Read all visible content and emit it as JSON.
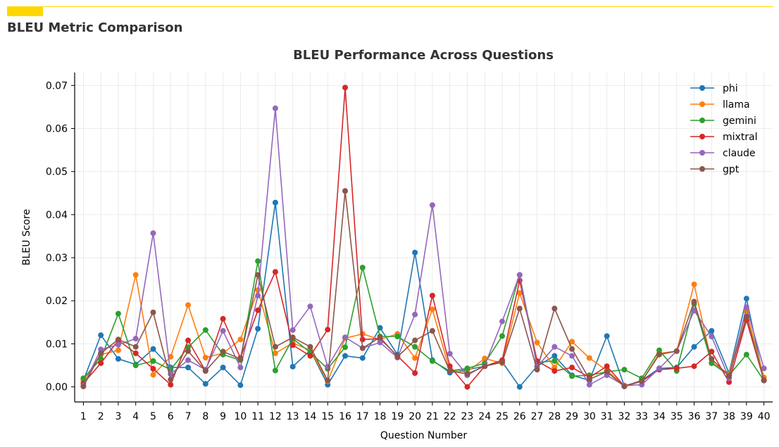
{
  "page": {
    "section_title": "BLEU Metric Comparison",
    "accent_color": "#FFD700"
  },
  "chart_data": {
    "type": "line",
    "title": "BLEU Performance Across Questions",
    "xlabel": "Question Number",
    "ylabel": "BLEU Score",
    "x": [
      1,
      2,
      3,
      4,
      5,
      6,
      7,
      8,
      9,
      10,
      11,
      12,
      13,
      14,
      15,
      16,
      17,
      18,
      19,
      20,
      21,
      22,
      23,
      24,
      25,
      26,
      27,
      28,
      29,
      30,
      31,
      32,
      33,
      34,
      35,
      36,
      37,
      38,
      39,
      40
    ],
    "xlim": [
      0.5,
      40.5
    ],
    "ylim": [
      -0.0035,
      0.073
    ],
    "yticks": [
      0.0,
      0.01,
      0.02,
      0.03,
      0.04,
      0.05,
      0.06,
      0.07
    ],
    "ytick_labels": [
      "0.00",
      "0.01",
      "0.02",
      "0.03",
      "0.04",
      "0.05",
      "0.06",
      "0.07"
    ],
    "grid": true,
    "legend_position": "top-right",
    "series": [
      {
        "name": "phi",
        "color": "#1f77b4",
        "values": [
          0.0015,
          0.012,
          0.0065,
          0.0052,
          0.0088,
          0.0045,
          0.0045,
          0.0007,
          0.0045,
          0.0004,
          0.0135,
          0.0428,
          0.0047,
          0.0085,
          0.0005,
          0.0072,
          0.0067,
          0.0137,
          0.0075,
          0.0312,
          0.0062,
          0.0033,
          0.004,
          0.0048,
          0.0058,
          0.0,
          0.0048,
          0.0072,
          0.0027,
          0.0015,
          0.0118,
          0.0002,
          0.0015,
          0.0043,
          0.0045,
          0.0093,
          0.013,
          0.0032,
          0.0205,
          0.0015
        ]
      },
      {
        "name": "llama",
        "color": "#ff7f0e",
        "values": [
          0.0015,
          0.0075,
          0.0085,
          0.026,
          0.0028,
          0.007,
          0.019,
          0.0068,
          0.0078,
          0.011,
          0.0225,
          0.0078,
          0.0102,
          0.0085,
          0.0013,
          0.0113,
          0.0123,
          0.011,
          0.0123,
          0.0067,
          0.018,
          0.0037,
          0.0035,
          0.0066,
          0.0055,
          0.0218,
          0.0103,
          0.0045,
          0.0105,
          0.0067,
          0.0038,
          0.0003,
          0.0013,
          0.0078,
          0.0083,
          0.0238,
          0.0057,
          0.003,
          0.0175,
          0.0022
        ]
      },
      {
        "name": "gemini",
        "color": "#2ca02c",
        "values": [
          0.002,
          0.0065,
          0.017,
          0.005,
          0.006,
          0.004,
          0.0092,
          0.0132,
          0.0075,
          0.0062,
          0.0292,
          0.0038,
          0.0112,
          0.008,
          0.0042,
          0.0092,
          0.0277,
          0.0117,
          0.0117,
          0.0093,
          0.006,
          0.0037,
          0.0043,
          0.0055,
          0.0118,
          0.026,
          0.0057,
          0.006,
          0.0025,
          0.0027,
          0.0035,
          0.004,
          0.002,
          0.0085,
          0.0037,
          0.0193,
          0.0055,
          0.0027,
          0.0075,
          0.0015
        ]
      },
      {
        "name": "mixtral",
        "color": "#d62728",
        "values": [
          0.0008,
          0.0055,
          0.0108,
          0.0078,
          0.0042,
          0.0005,
          0.0108,
          0.0037,
          0.0158,
          0.0067,
          0.0178,
          0.0267,
          0.0097,
          0.0072,
          0.0133,
          0.0695,
          0.011,
          0.0112,
          0.0072,
          0.0032,
          0.0212,
          0.0048,
          0.0,
          0.0048,
          0.0062,
          0.0247,
          0.006,
          0.0037,
          0.0045,
          0.0022,
          0.0048,
          0.0002,
          0.0013,
          0.004,
          0.0043,
          0.0048,
          0.0082,
          0.0011,
          0.0155,
          0.0015
        ]
      },
      {
        "name": "claude",
        "color": "#9467bd",
        "values": [
          0.0003,
          0.0087,
          0.0098,
          0.0112,
          0.0357,
          0.003,
          0.0062,
          0.004,
          0.013,
          0.0045,
          0.0212,
          0.0647,
          0.0132,
          0.0187,
          0.0047,
          0.0115,
          0.009,
          0.0103,
          0.0068,
          0.0168,
          0.0422,
          0.0077,
          0.0027,
          0.005,
          0.0152,
          0.026,
          0.0047,
          0.0093,
          0.0072,
          0.0005,
          0.0027,
          0.0003,
          0.0005,
          0.0043,
          0.0083,
          0.0177,
          0.0117,
          0.002,
          0.0185,
          0.0043
        ]
      },
      {
        "name": "gpt",
        "color": "#8c564b",
        "values": [
          0.0001,
          0.0078,
          0.011,
          0.0093,
          0.0173,
          0.0017,
          0.0083,
          0.0037,
          0.0082,
          0.0065,
          0.026,
          0.0093,
          0.0115,
          0.0093,
          0.0015,
          0.0455,
          0.009,
          0.0115,
          0.007,
          0.0108,
          0.013,
          0.0037,
          0.003,
          0.0048,
          0.0057,
          0.0182,
          0.004,
          0.0182,
          0.0088,
          0.0018,
          0.0035,
          0.0001,
          0.0013,
          0.0075,
          0.0083,
          0.0198,
          0.0065,
          0.0025,
          0.0163,
          0.0015
        ]
      }
    ]
  }
}
